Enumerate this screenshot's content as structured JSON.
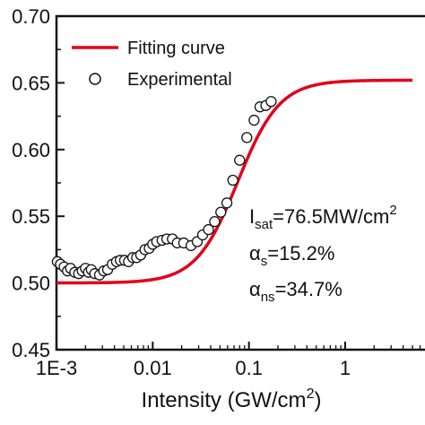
{
  "chart_data": {
    "type": "line",
    "title": "",
    "xlabel": "Intensity (GW/cm",
    "xlabel_sup": "2",
    "xlabel_close": ")",
    "ylabel": "",
    "xscale": "log",
    "xlim": [
      0.001,
      5
    ],
    "ylim": [
      0.45,
      0.7
    ],
    "x_ticks": [
      {
        "value": 0.001,
        "label": "1E-3"
      },
      {
        "value": 0.01,
        "label": "0.01"
      },
      {
        "value": 0.1,
        "label": "0.1"
      },
      {
        "value": 1,
        "label": "1"
      }
    ],
    "y_ticks": [
      {
        "value": 0.45,
        "label": "0.45"
      },
      {
        "value": 0.5,
        "label": "0.50"
      },
      {
        "value": 0.55,
        "label": "0.55"
      },
      {
        "value": 0.6,
        "label": "0.60"
      },
      {
        "value": 0.65,
        "label": "0.65"
      },
      {
        "value": 0.7,
        "label": "0.70"
      }
    ],
    "grid": false,
    "legend_position": "top-left",
    "legend": {
      "fit_label": "Fitting curve",
      "exp_label": "Experimental"
    },
    "fit_color": "#e3001b",
    "fit_params": {
      "alpha_s": 0.152,
      "alpha_ns": 0.347,
      "I_sat": 0.0765,
      "T0": 0.5
    },
    "series": [
      {
        "name": "Experimental",
        "x": [
          0.00102,
          0.0011,
          0.0012,
          0.0013,
          0.0014,
          0.00155,
          0.0017,
          0.00185,
          0.002,
          0.00215,
          0.0023,
          0.0025,
          0.0028,
          0.0031,
          0.0034,
          0.0038,
          0.0042,
          0.0046,
          0.0051,
          0.0056,
          0.0062,
          0.0068,
          0.0075,
          0.0083,
          0.0092,
          0.01,
          0.011,
          0.0125,
          0.014,
          0.016,
          0.018,
          0.021,
          0.025,
          0.029,
          0.033,
          0.038,
          0.044,
          0.051,
          0.059,
          0.068,
          0.08,
          0.095,
          0.113,
          0.13,
          0.15,
          0.17
        ],
        "y": [
          0.516,
          0.514,
          0.512,
          0.509,
          0.511,
          0.508,
          0.507,
          0.509,
          0.511,
          0.508,
          0.51,
          0.507,
          0.506,
          0.509,
          0.51,
          0.514,
          0.516,
          0.517,
          0.517,
          0.516,
          0.519,
          0.519,
          0.521,
          0.525,
          0.526,
          0.529,
          0.531,
          0.532,
          0.533,
          0.533,
          0.53,
          0.53,
          0.528,
          0.531,
          0.536,
          0.54,
          0.546,
          0.553,
          0.56,
          0.577,
          0.592,
          0.609,
          0.622,
          0.632,
          0.633,
          0.636
        ]
      }
    ],
    "annotations": {
      "isat_main": "I",
      "isat_sub": "sat",
      "isat_value": "=76.5MW/cm",
      "isat_sup": "2",
      "as_main": "α",
      "as_sub": "s",
      "as_value": "=15.2%",
      "ans_main": "α",
      "ans_sub": "ns",
      "ans_value": "=34.7%"
    }
  }
}
